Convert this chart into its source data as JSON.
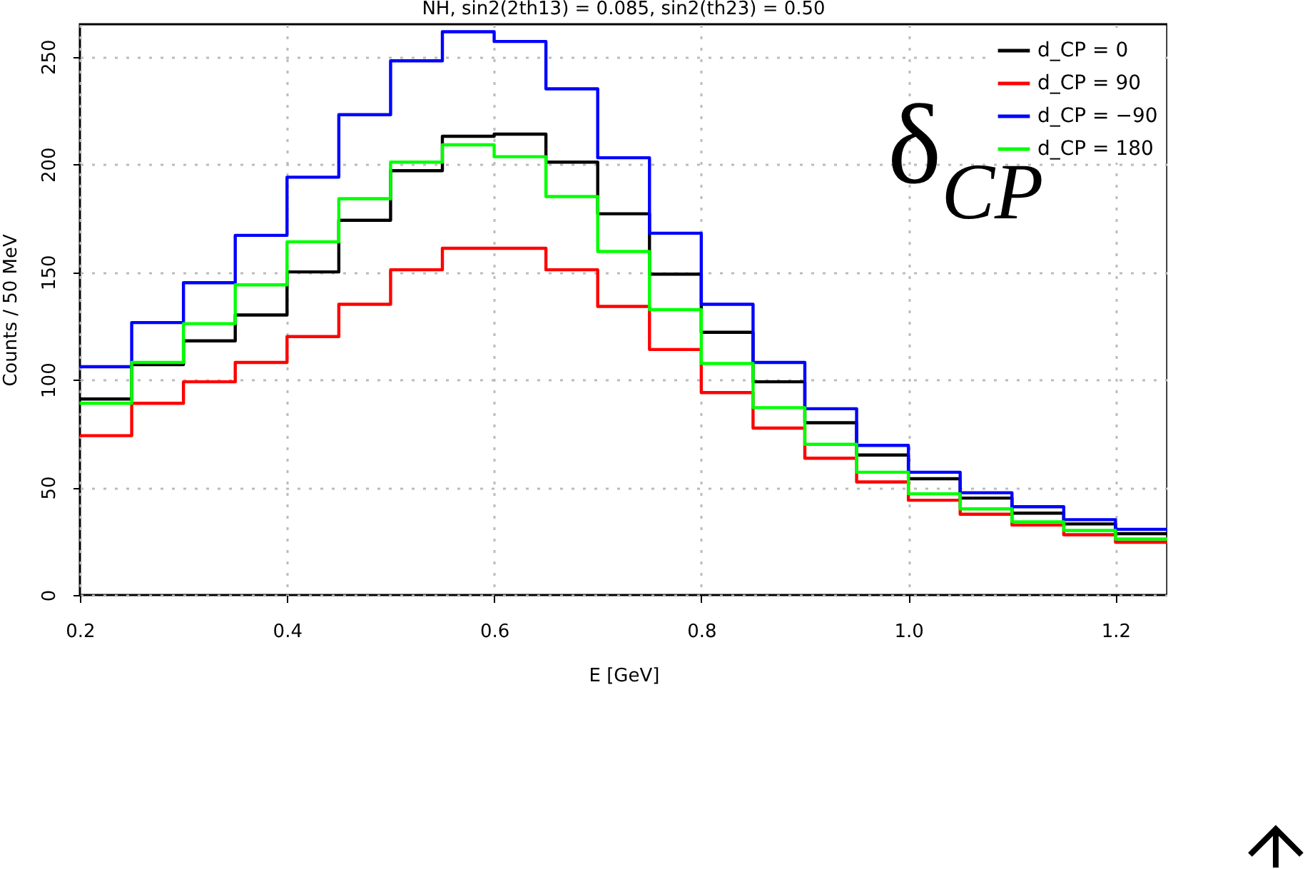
{
  "chart_data": {
    "type": "histogram",
    "title": "NH,  sin2(2th13) = 0.085,  sin2(th23) = 0.50",
    "xlabel": "E  [GeV]",
    "ylabel": "Counts / 50 MeV",
    "annotations": [
      "δ$_{CP}$"
    ],
    "bins": [
      0.2,
      0.25,
      0.3,
      0.35,
      0.4,
      0.45,
      0.5,
      0.55,
      0.6,
      0.65,
      0.7,
      0.75,
      0.8,
      0.85,
      0.9,
      0.95,
      1.0,
      1.05,
      1.1,
      1.15,
      1.2,
      1.25
    ],
    "series": [
      {
        "name": "d_CP = 0",
        "color": "#000000",
        "values": [
          91,
          107,
          118,
          130,
          150,
          174,
          197,
          213,
          214,
          201,
          177,
          149,
          122,
          99,
          80,
          65,
          54,
          45,
          38,
          33,
          28.5
        ]
      },
      {
        "name": "d_CP = 90",
        "color": "#ff0000",
        "values": [
          74,
          89,
          99,
          108,
          120,
          135,
          151,
          161,
          161,
          151,
          134,
          114,
          94,
          77.5,
          63.5,
          52.5,
          44,
          37.5,
          32.5,
          28,
          24.5
        ]
      },
      {
        "name": "d_CP = −90",
        "color": "#0000ff",
        "values": [
          106,
          126.5,
          145,
          167,
          194,
          223,
          248,
          261.5,
          257,
          235,
          203,
          168,
          135,
          108,
          86.5,
          69.5,
          57,
          47.5,
          41,
          35,
          30.5
        ]
      },
      {
        "name": "d_CP = 180",
        "color": "#00ff00",
        "values": [
          89,
          108,
          126,
          144,
          164,
          184,
          201,
          209,
          203.5,
          185,
          159.5,
          132.5,
          107.5,
          87,
          70,
          57,
          47,
          40,
          34,
          30,
          26
        ]
      }
    ],
    "xlim": [
      0.2,
      1.25
    ],
    "xticks": [
      0.2,
      0.4,
      0.6,
      0.8,
      {
        "value": 1.0,
        "label": "1.0"
      },
      1.2
    ],
    "ylim": [
      0,
      265
    ],
    "yticks": [
      0,
      50,
      100,
      150,
      200,
      250
    ],
    "grid": true,
    "legend": "top right",
    "line_style": "solid"
  }
}
